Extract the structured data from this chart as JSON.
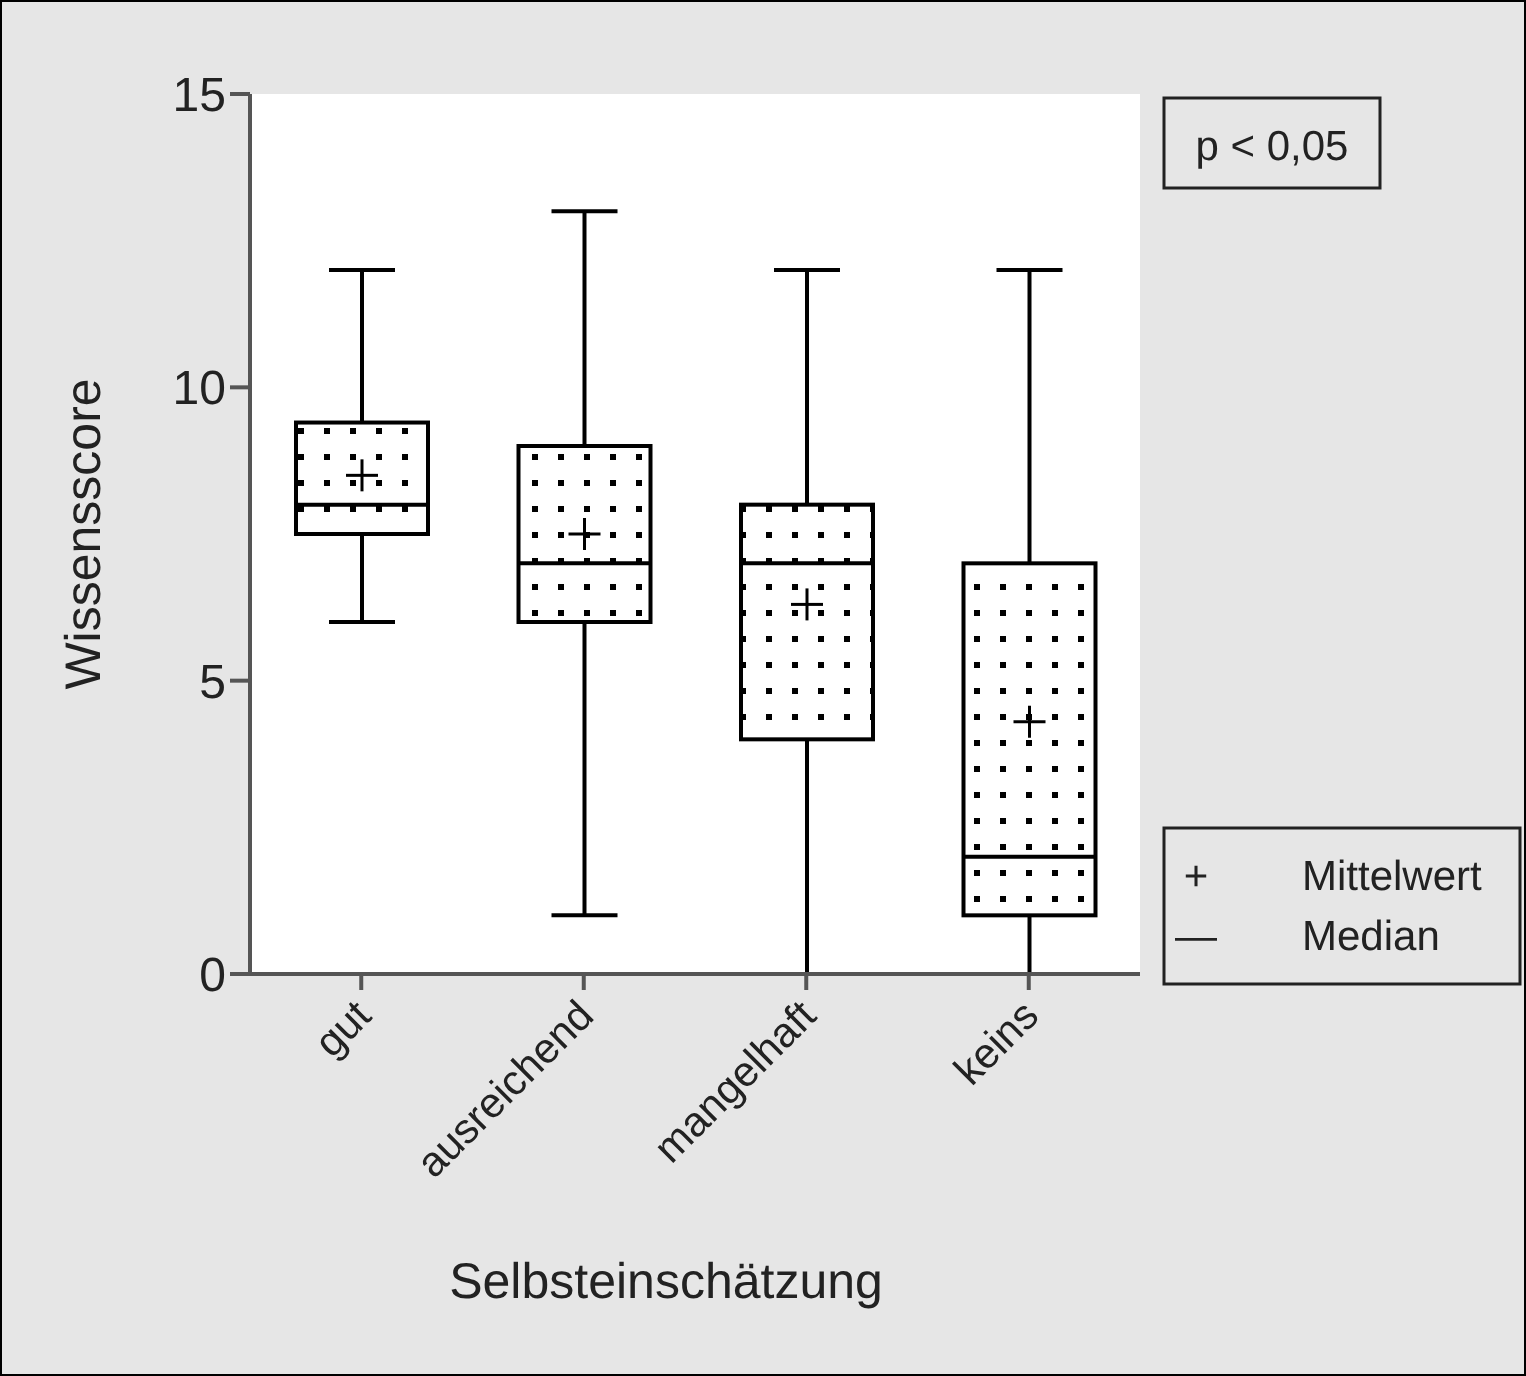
{
  "chart_data": {
    "type": "box",
    "xlabel": "Selbsteinschätzung",
    "ylabel": "Wissensscore",
    "categories": [
      "gut",
      "ausreichend",
      "mangelhaft",
      "keins"
    ],
    "boxes": [
      {
        "low": 6,
        "q1": 7.5,
        "median": 8,
        "q3": 9.4,
        "high": 12,
        "mean": 8.5
      },
      {
        "low": 1,
        "q1": 6,
        "median": 7,
        "q3": 9,
        "high": 13,
        "mean": 7.5
      },
      {
        "low": 0,
        "q1": 4,
        "median": 7,
        "q3": 8,
        "high": 12,
        "mean": 6.3
      },
      {
        "low": 0,
        "q1": 1,
        "median": 2,
        "q3": 7,
        "high": 12,
        "mean": 4.3
      }
    ],
    "color": "#000000",
    "ylim": [
      0,
      15
    ],
    "yticks": [
      0,
      5,
      10,
      15
    ],
    "annotations": [
      "p < 0,05",
      "+ Mittelwert",
      "— Median"
    ]
  }
}
